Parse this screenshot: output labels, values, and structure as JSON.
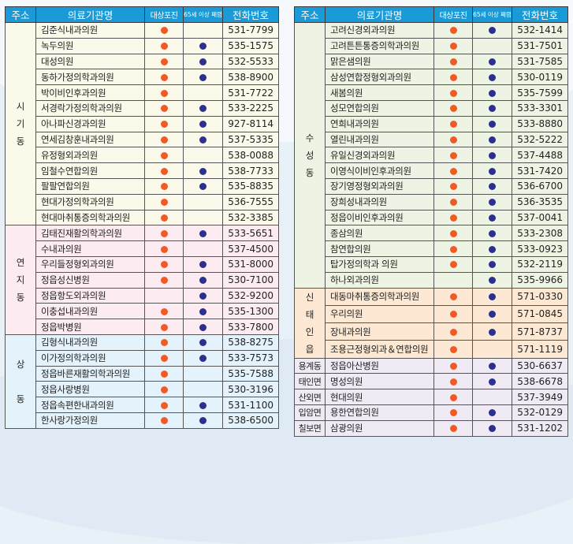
{
  "colors": {
    "header": "#1a9ad6",
    "dot_shingles": "#f15a24",
    "dot_pneumonia": "#2b2f8f"
  },
  "headers": {
    "address": "주소",
    "name": "의료기관명",
    "shingles": "대상포진",
    "pneumonia": "65세 이상 폐렴",
    "phone": "전화번호"
  },
  "left": {
    "groups": [
      {
        "address": "시\n기\n동",
        "bg": "yellow",
        "rows": [
          {
            "name": "김준식내과의원",
            "shingles": true,
            "pneumonia": false,
            "phone": "531-7799"
          },
          {
            "name": "녹두의원",
            "shingles": true,
            "pneumonia": true,
            "phone": "535-1575"
          },
          {
            "name": "대성의원",
            "shingles": true,
            "pneumonia": true,
            "phone": "532-5533"
          },
          {
            "name": "동하가정의학과의원",
            "shingles": true,
            "pneumonia": true,
            "phone": "538-8900"
          },
          {
            "name": "박이비인후과의원",
            "shingles": true,
            "pneumonia": false,
            "phone": "531-7722"
          },
          {
            "name": "서경락가정의학과의원",
            "shingles": true,
            "pneumonia": true,
            "phone": "533-2225"
          },
          {
            "name": "아나파신경과의원",
            "shingles": true,
            "pneumonia": true,
            "phone": "927-8114"
          },
          {
            "name": "연세김창훈내과의원",
            "shingles": true,
            "pneumonia": true,
            "phone": "537-5335"
          },
          {
            "name": "유정형외과의원",
            "shingles": true,
            "pneumonia": false,
            "phone": "538-0088"
          },
          {
            "name": "임철수연합의원",
            "shingles": true,
            "pneumonia": true,
            "phone": "538-7733"
          },
          {
            "name": "팔팔연합의원",
            "shingles": true,
            "pneumonia": true,
            "phone": "535-8835"
          },
          {
            "name": "현대가정의학과의원",
            "shingles": true,
            "pneumonia": false,
            "phone": "536-7555"
          },
          {
            "name": "현대마취통증의학과의원",
            "shingles": true,
            "pneumonia": false,
            "phone": "532-3385"
          }
        ]
      },
      {
        "address": "연\n지\n동",
        "bg": "pink",
        "rows": [
          {
            "name": "김태진재활의학과의원",
            "shingles": true,
            "pneumonia": true,
            "phone": "533-5651"
          },
          {
            "name": "수내과의원",
            "shingles": true,
            "pneumonia": false,
            "phone": "537-4500"
          },
          {
            "name": "우리들정형외과의원",
            "shingles": true,
            "pneumonia": true,
            "phone": "531-8000"
          },
          {
            "name": "정읍성신병원",
            "shingles": true,
            "pneumonia": true,
            "phone": "530-7100"
          },
          {
            "name": "정읍항도외과의원",
            "shingles": false,
            "pneumonia": true,
            "phone": "532-9200"
          },
          {
            "name": "이충섭내과의원",
            "shingles": true,
            "pneumonia": true,
            "phone": "535-1300"
          },
          {
            "name": "정읍박병원",
            "shingles": true,
            "pneumonia": true,
            "phone": "533-7800"
          }
        ]
      },
      {
        "address": "상\n\n동",
        "bg": "blue",
        "rows": [
          {
            "name": "김형식내과의원",
            "shingles": true,
            "pneumonia": true,
            "phone": "538-8275"
          },
          {
            "name": "이가정의학과의원",
            "shingles": true,
            "pneumonia": true,
            "phone": "533-7573"
          },
          {
            "name": "정읍바른재활의학과의원",
            "shingles": true,
            "pneumonia": false,
            "phone": "535-7588"
          },
          {
            "name": "정읍사랑병원",
            "shingles": true,
            "pneumonia": false,
            "phone": "530-3196"
          },
          {
            "name": "정읍속편한내과의원",
            "shingles": true,
            "pneumonia": true,
            "phone": "531-1100"
          },
          {
            "name": "한사랑가정의원",
            "shingles": true,
            "pneumonia": true,
            "phone": "538-6500"
          }
        ]
      }
    ]
  },
  "right": {
    "groups": [
      {
        "address": "수\n성\n동",
        "bg": "green",
        "rows": [
          {
            "name": "고려신경외과의원",
            "shingles": true,
            "pneumonia": true,
            "phone": "532-1414"
          },
          {
            "name": "고려튼튼통증의학과의원",
            "shingles": true,
            "pneumonia": false,
            "phone": "531-7501"
          },
          {
            "name": "맑은샘의원",
            "shingles": true,
            "pneumonia": true,
            "phone": "531-7585"
          },
          {
            "name": "삼성연합정형외과의원",
            "shingles": true,
            "pneumonia": true,
            "phone": "530-0119"
          },
          {
            "name": "새봄의원",
            "shingles": true,
            "pneumonia": true,
            "phone": "535-7599"
          },
          {
            "name": "성모연합의원",
            "shingles": true,
            "pneumonia": true,
            "phone": "533-3301"
          },
          {
            "name": "연희내과의원",
            "shingles": true,
            "pneumonia": true,
            "phone": "533-8880"
          },
          {
            "name": "열린내과의원",
            "shingles": true,
            "pneumonia": true,
            "phone": "532-5222"
          },
          {
            "name": "유일신경외과의원",
            "shingles": true,
            "pneumonia": true,
            "phone": "537-4488"
          },
          {
            "name": "이영식이비인후과의원",
            "shingles": true,
            "pneumonia": true,
            "phone": "531-7420"
          },
          {
            "name": "장기영정형외과의원",
            "shingles": true,
            "pneumonia": true,
            "phone": "536-6700"
          },
          {
            "name": "장희성내과의원",
            "shingles": true,
            "pneumonia": true,
            "phone": "536-3535"
          },
          {
            "name": "정읍이비인후과의원",
            "shingles": true,
            "pneumonia": true,
            "phone": "537-0041"
          },
          {
            "name": "종삼의원",
            "shingles": true,
            "pneumonia": true,
            "phone": "533-2308"
          },
          {
            "name": "참연합의원",
            "shingles": true,
            "pneumonia": true,
            "phone": "533-0923"
          },
          {
            "name": "탑가정의학과 의원",
            "shingles": true,
            "pneumonia": true,
            "phone": "532-2119"
          },
          {
            "name": "하나외과의원",
            "shingles": false,
            "pneumonia": true,
            "phone": "535-9966"
          }
        ]
      },
      {
        "address": "신\n태\n인\n읍",
        "bg": "orange",
        "rows": [
          {
            "name": "대동마취통증의학과의원",
            "shingles": true,
            "pneumonia": true,
            "phone": "571-0330"
          },
          {
            "name": "우리의원",
            "shingles": true,
            "pneumonia": true,
            "phone": "571-0845"
          },
          {
            "name": "장내과의원",
            "shingles": true,
            "pneumonia": true,
            "phone": "571-8737"
          },
          {
            "name": "조용근정형외과＆연합의원",
            "shingles": true,
            "pneumonia": false,
            "phone": "571-1119"
          }
        ]
      },
      {
        "address": "용계동",
        "bg": "lav",
        "short": true,
        "rows": [
          {
            "name": "정읍아산병원",
            "shingles": true,
            "pneumonia": true,
            "phone": "530-6637"
          }
        ]
      },
      {
        "address": "태인면",
        "bg": "lav",
        "short": true,
        "rows": [
          {
            "name": "명성의원",
            "shingles": true,
            "pneumonia": true,
            "phone": "538-6678"
          }
        ]
      },
      {
        "address": "산외면",
        "bg": "lav",
        "short": true,
        "rows": [
          {
            "name": "현대의원",
            "shingles": true,
            "pneumonia": false,
            "phone": "537-3949"
          }
        ]
      },
      {
        "address": "입암면",
        "bg": "lav",
        "short": true,
        "rows": [
          {
            "name": "용한연합의원",
            "shingles": true,
            "pneumonia": true,
            "phone": "532-0129"
          }
        ]
      },
      {
        "address": "칠보면",
        "bg": "lav",
        "short": true,
        "rows": [
          {
            "name": "삼광의원",
            "shingles": true,
            "pneumonia": true,
            "phone": "531-1202"
          }
        ]
      }
    ]
  }
}
